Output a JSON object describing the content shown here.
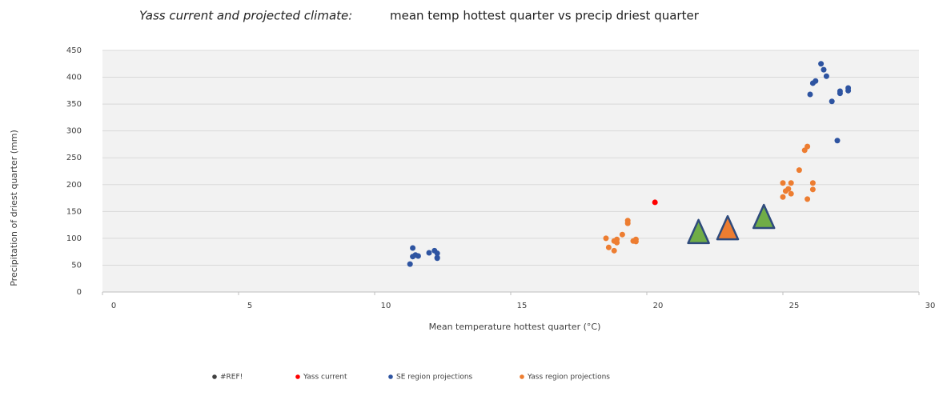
{
  "chart_data": {
    "type": "scatter",
    "title": "Yass current and projected climate:",
    "subtitle": "mean temp hottest quarter vs precip driest quarter",
    "x_label": "Mean temperature hottest quarter (°C)",
    "y_label": "Precipitation of driest quarter (mm)",
    "xlim": [
      0,
      30
    ],
    "xticks": [
      0,
      5,
      10,
      15,
      20,
      25,
      30
    ],
    "ylim": [
      0,
      450
    ],
    "yticks": [
      0,
      50,
      100,
      150,
      200,
      250,
      300,
      350,
      400,
      450
    ],
    "grid": true,
    "legend": "bottom",
    "series": [
      {
        "name": "#REF!",
        "color": "#404040",
        "x": [],
        "values": []
      },
      {
        "name": "Yass current",
        "color": "#ff0000",
        "x": [
          20.3
        ],
        "values": [
          167
        ]
      },
      {
        "name": "SE region projections",
        "color": "#2e54a1",
        "x": [
          11.3,
          11.4,
          11.4,
          11.5,
          11.6,
          12.0,
          12.2,
          12.3,
          12.3,
          12.3,
          26.4,
          26.5,
          26.6,
          26.2,
          26.1,
          26.0,
          26.8,
          27.1,
          27.1,
          27.4,
          27.4,
          27.0
        ],
        "values": [
          52,
          82,
          66,
          69,
          67,
          73,
          77,
          72,
          64,
          63,
          425,
          414,
          402,
          393,
          389,
          368,
          355,
          370,
          374,
          380,
          375,
          282
        ]
      },
      {
        "name": "Yass region projections",
        "color": "#ed7d31",
        "x": [
          18.5,
          18.8,
          18.9,
          18.9,
          18.6,
          18.8,
          19.1,
          19.3,
          19.3,
          19.5,
          19.6,
          19.6,
          25.0,
          25.1,
          25.2,
          25.3,
          25.0,
          25.3,
          25.6,
          25.9,
          25.8,
          25.9,
          26.1,
          26.1
        ],
        "values": [
          100,
          95,
          92,
          98,
          83,
          77,
          107,
          133,
          128,
          95,
          98,
          94,
          177,
          188,
          192,
          183,
          203,
          203,
          227,
          173,
          264,
          271,
          203,
          191
        ]
      }
    ],
    "highlights": [
      {
        "x": 21.9,
        "y": 109,
        "color": "#70ad47"
      },
      {
        "x": 22.97,
        "y": 116,
        "color": "#ed7d31"
      },
      {
        "x": 24.3,
        "y": 137,
        "color": "#70ad47"
      }
    ]
  }
}
